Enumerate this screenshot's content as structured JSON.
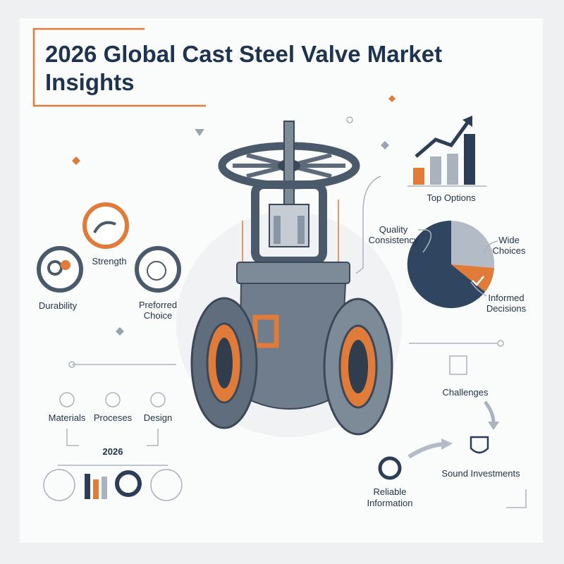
{
  "header": {
    "title_lines": [
      "2026 Global Cast Steel Valve Market",
      "Insights"
    ]
  },
  "top_options": {
    "label": "Top Options"
  },
  "pie_labels": {
    "quality": [
      "Quality",
      "Consistency"
    ],
    "wide": [
      "Wide",
      "Choices"
    ],
    "informed": [
      "Informed",
      "Decisions"
    ]
  },
  "features": {
    "strength": "Strength",
    "durability": "Durability",
    "preferred": [
      "Preforred",
      "Choice"
    ]
  },
  "process": {
    "steps": [
      "Materials",
      "Proceses",
      "Design"
    ],
    "year": "2026"
  },
  "flow": {
    "challenges": "Challenges",
    "sound": "Sound Investments",
    "reliable": [
      "Reliable",
      "Information"
    ]
  }
}
